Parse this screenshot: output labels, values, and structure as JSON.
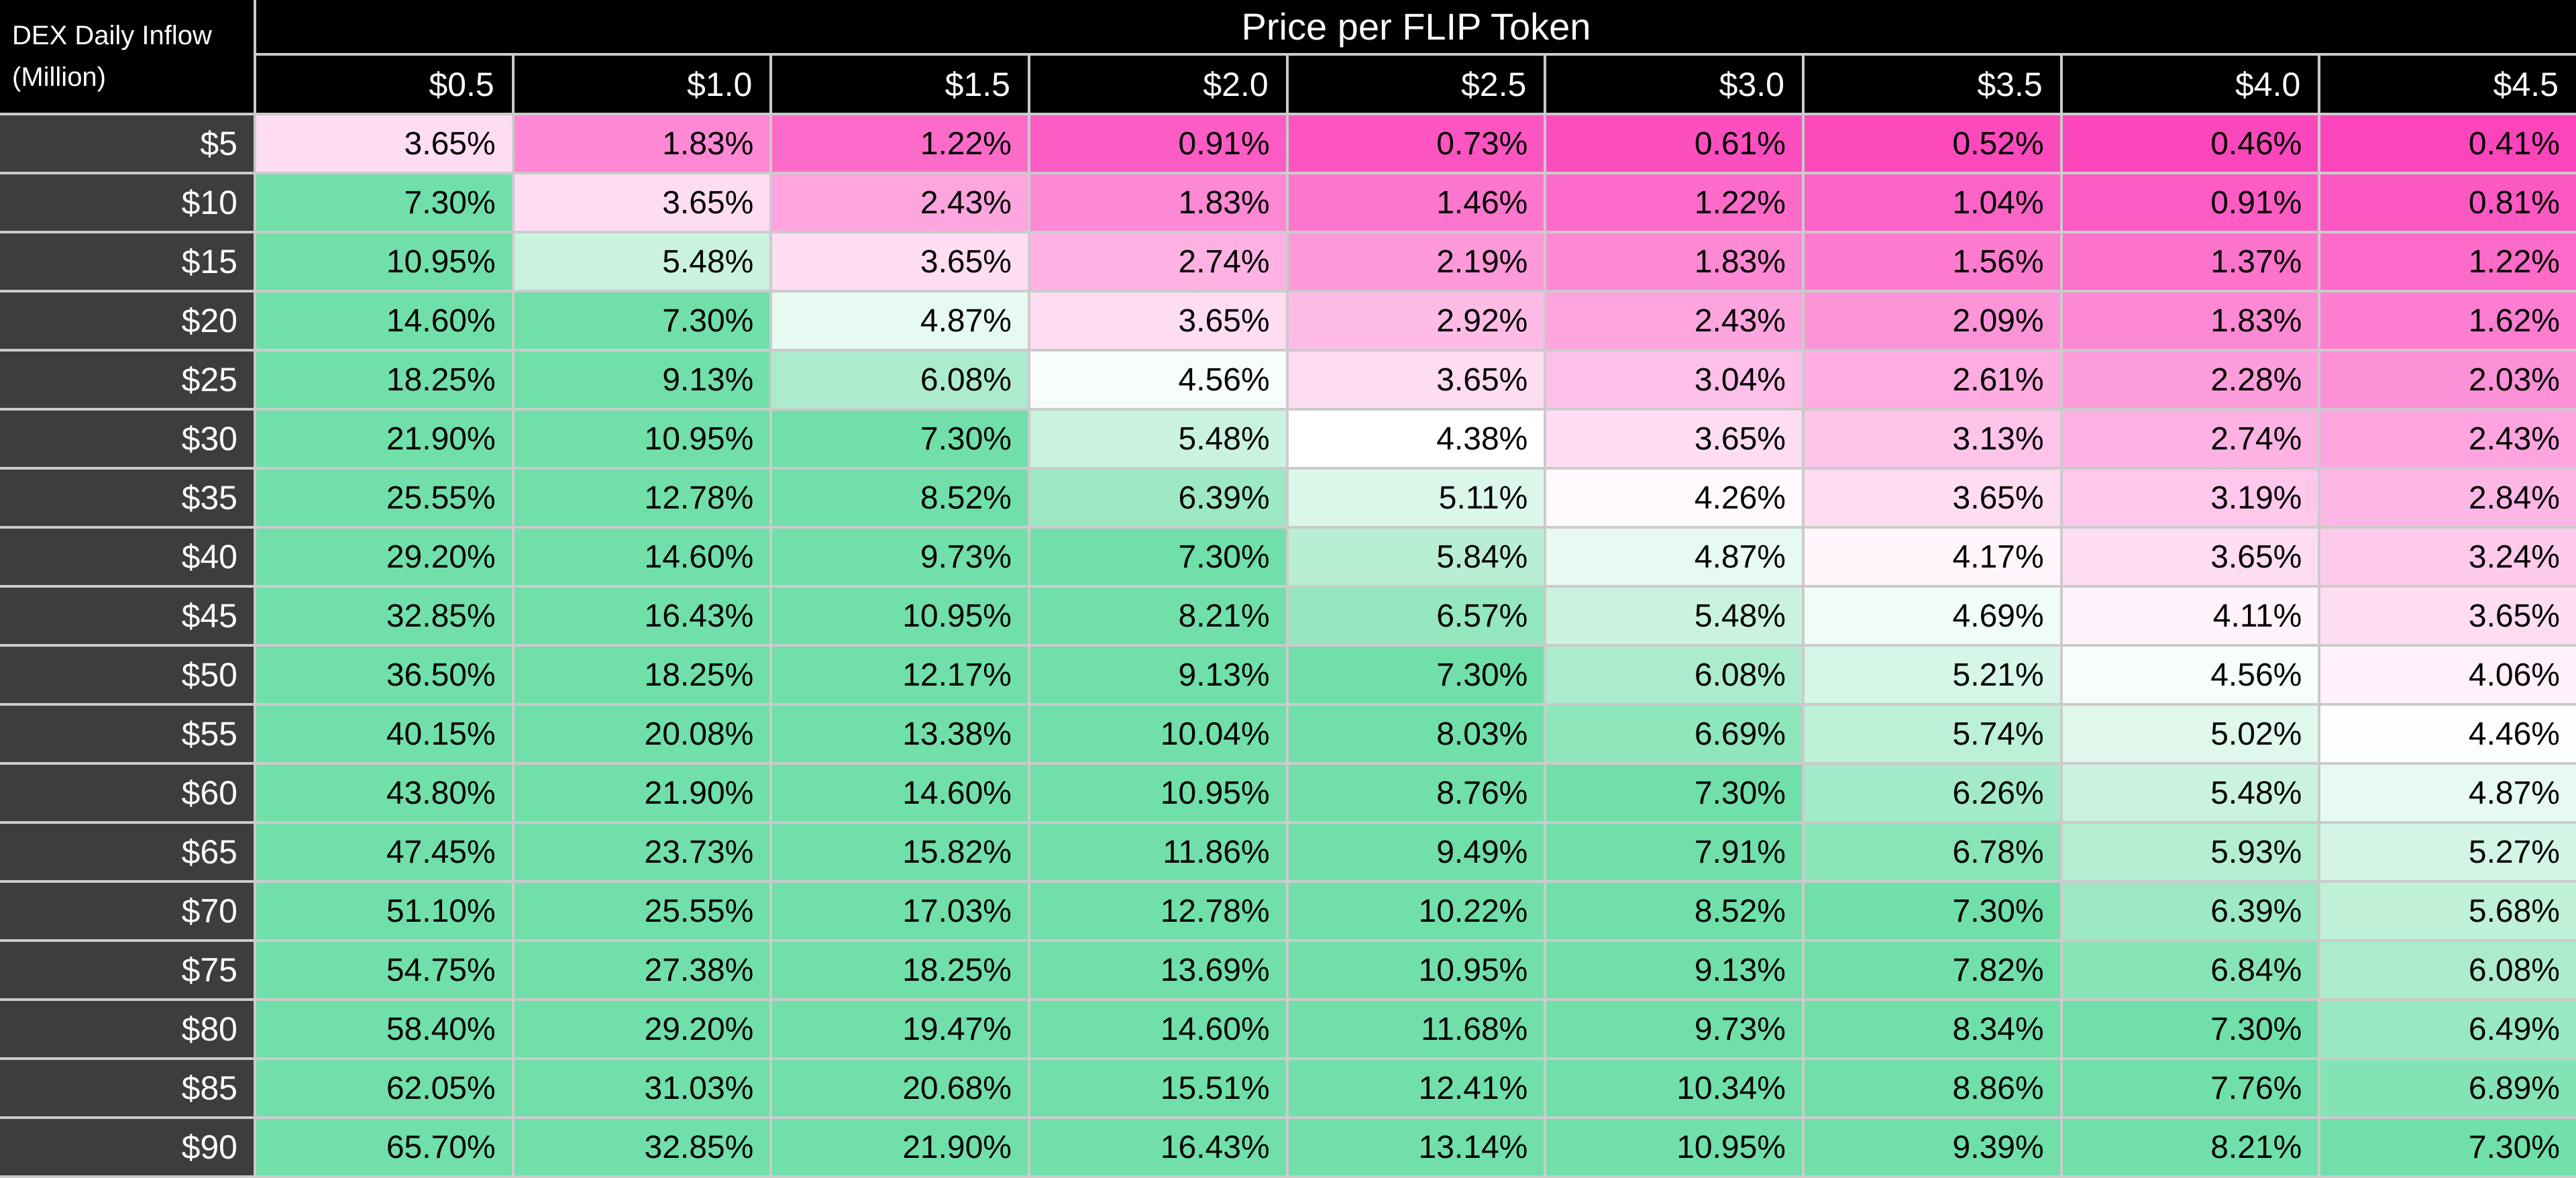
{
  "corner": {
    "line1": "DEX Daily Inflow",
    "line2": "(Million)"
  },
  "title": "Price per FLIP Token",
  "columns": [
    "$0.5",
    "$1.0",
    "$1.5",
    "$2.0",
    "$2.5",
    "$3.0",
    "$3.5",
    "$4.0",
    "$4.5"
  ],
  "rows": [
    {
      "label": "$5",
      "values": [
        "3.65%",
        "1.83%",
        "1.22%",
        "0.91%",
        "0.73%",
        "0.61%",
        "0.52%",
        "0.46%",
        "0.41%"
      ]
    },
    {
      "label": "$10",
      "values": [
        "7.30%",
        "3.65%",
        "2.43%",
        "1.83%",
        "1.46%",
        "1.22%",
        "1.04%",
        "0.91%",
        "0.81%"
      ]
    },
    {
      "label": "$15",
      "values": [
        "10.95%",
        "5.48%",
        "3.65%",
        "2.74%",
        "2.19%",
        "1.83%",
        "1.56%",
        "1.37%",
        "1.22%"
      ]
    },
    {
      "label": "$20",
      "values": [
        "14.60%",
        "7.30%",
        "4.87%",
        "3.65%",
        "2.92%",
        "2.43%",
        "2.09%",
        "1.83%",
        "1.62%"
      ]
    },
    {
      "label": "$25",
      "values": [
        "18.25%",
        "9.13%",
        "6.08%",
        "4.56%",
        "3.65%",
        "3.04%",
        "2.61%",
        "2.28%",
        "2.03%"
      ]
    },
    {
      "label": "$30",
      "values": [
        "21.90%",
        "10.95%",
        "7.30%",
        "5.48%",
        "4.38%",
        "3.65%",
        "3.13%",
        "2.74%",
        "2.43%"
      ]
    },
    {
      "label": "$35",
      "values": [
        "25.55%",
        "12.78%",
        "8.52%",
        "6.39%",
        "5.11%",
        "4.26%",
        "3.65%",
        "3.19%",
        "2.84%"
      ]
    },
    {
      "label": "$40",
      "values": [
        "29.20%",
        "14.60%",
        "9.73%",
        "7.30%",
        "5.84%",
        "4.87%",
        "4.17%",
        "3.65%",
        "3.24%"
      ]
    },
    {
      "label": "$45",
      "values": [
        "32.85%",
        "16.43%",
        "10.95%",
        "8.21%",
        "6.57%",
        "5.48%",
        "4.69%",
        "4.11%",
        "3.65%"
      ]
    },
    {
      "label": "$50",
      "values": [
        "36.50%",
        "18.25%",
        "12.17%",
        "9.13%",
        "7.30%",
        "6.08%",
        "5.21%",
        "4.56%",
        "4.06%"
      ]
    },
    {
      "label": "$55",
      "values": [
        "40.15%",
        "20.08%",
        "13.38%",
        "10.04%",
        "8.03%",
        "6.69%",
        "5.74%",
        "5.02%",
        "4.46%"
      ]
    },
    {
      "label": "$60",
      "values": [
        "43.80%",
        "21.90%",
        "14.60%",
        "10.95%",
        "8.76%",
        "7.30%",
        "6.26%",
        "5.48%",
        "4.87%"
      ]
    },
    {
      "label": "$65",
      "values": [
        "47.45%",
        "23.73%",
        "15.82%",
        "11.86%",
        "9.49%",
        "7.91%",
        "6.78%",
        "5.93%",
        "5.27%"
      ]
    },
    {
      "label": "$70",
      "values": [
        "51.10%",
        "25.55%",
        "17.03%",
        "12.78%",
        "10.22%",
        "8.52%",
        "7.30%",
        "6.39%",
        "5.68%"
      ]
    },
    {
      "label": "$75",
      "values": [
        "54.75%",
        "27.38%",
        "18.25%",
        "13.69%",
        "10.95%",
        "9.13%",
        "7.82%",
        "6.84%",
        "6.08%"
      ]
    },
    {
      "label": "$80",
      "values": [
        "58.40%",
        "29.20%",
        "19.47%",
        "14.60%",
        "11.68%",
        "9.73%",
        "8.34%",
        "7.30%",
        "6.49%"
      ]
    },
    {
      "label": "$85",
      "values": [
        "62.05%",
        "31.03%",
        "20.68%",
        "15.51%",
        "12.41%",
        "10.34%",
        "8.86%",
        "7.76%",
        "6.89%"
      ]
    },
    {
      "label": "$90",
      "values": [
        "65.70%",
        "32.85%",
        "21.90%",
        "16.43%",
        "13.14%",
        "10.95%",
        "9.39%",
        "8.21%",
        "7.30%"
      ]
    }
  ],
  "colors": {
    "scale_low": "#FC45BB",
    "scale_mid": "#FFFFFF",
    "scale_high": "#70DFA9",
    "gridline": "#CBCBCB",
    "header_bg": "#000000",
    "header_text": "#FFFFFF",
    "row_header_bg": "#3D3D3D",
    "cell_text": "#000000"
  },
  "color_scale": {
    "low_value": 0.41,
    "mid_value": 4.38,
    "high_value": 7.3
  },
  "chart_data": {
    "type": "heatmap",
    "title": "Price per FLIP Token",
    "ylabel": "DEX Daily Inflow (Million)",
    "x_categories": [
      "$0.5",
      "$1.0",
      "$1.5",
      "$2.0",
      "$2.5",
      "$3.0",
      "$3.5",
      "$4.0",
      "$4.5"
    ],
    "y_categories": [
      "$5",
      "$10",
      "$15",
      "$20",
      "$25",
      "$30",
      "$35",
      "$40",
      "$45",
      "$50",
      "$55",
      "$60",
      "$65",
      "$70",
      "$75",
      "$80",
      "$85",
      "$90"
    ],
    "values_unit": "percent",
    "values": [
      [
        3.65,
        1.83,
        1.22,
        0.91,
        0.73,
        0.61,
        0.52,
        0.46,
        0.41
      ],
      [
        7.3,
        3.65,
        2.43,
        1.83,
        1.46,
        1.22,
        1.04,
        0.91,
        0.81
      ],
      [
        10.95,
        5.48,
        3.65,
        2.74,
        2.19,
        1.83,
        1.56,
        1.37,
        1.22
      ],
      [
        14.6,
        7.3,
        4.87,
        3.65,
        2.92,
        2.43,
        2.09,
        1.83,
        1.62
      ],
      [
        18.25,
        9.13,
        6.08,
        4.56,
        3.65,
        3.04,
        2.61,
        2.28,
        2.03
      ],
      [
        21.9,
        10.95,
        7.3,
        5.48,
        4.38,
        3.65,
        3.13,
        2.74,
        2.43
      ],
      [
        25.55,
        12.78,
        8.52,
        6.39,
        5.11,
        4.26,
        3.65,
        3.19,
        2.84
      ],
      [
        29.2,
        14.6,
        9.73,
        7.3,
        5.84,
        4.87,
        4.17,
        3.65,
        3.24
      ],
      [
        32.85,
        16.43,
        10.95,
        8.21,
        6.57,
        5.48,
        4.69,
        4.11,
        3.65
      ],
      [
        36.5,
        18.25,
        12.17,
        9.13,
        7.3,
        6.08,
        5.21,
        4.56,
        4.06
      ],
      [
        40.15,
        20.08,
        13.38,
        10.04,
        8.03,
        6.69,
        5.74,
        5.02,
        4.46
      ],
      [
        43.8,
        21.9,
        14.6,
        10.95,
        8.76,
        7.3,
        6.26,
        5.48,
        4.87
      ],
      [
        47.45,
        23.73,
        15.82,
        11.86,
        9.49,
        7.91,
        6.78,
        5.93,
        5.27
      ],
      [
        51.1,
        25.55,
        17.03,
        12.78,
        10.22,
        8.52,
        7.3,
        6.39,
        5.68
      ],
      [
        54.75,
        27.38,
        18.25,
        13.69,
        10.95,
        9.13,
        7.82,
        6.84,
        6.08
      ],
      [
        58.4,
        29.2,
        19.47,
        14.6,
        11.68,
        9.73,
        8.34,
        7.3,
        6.49
      ],
      [
        62.05,
        31.03,
        20.68,
        15.51,
        12.41,
        10.34,
        8.86,
        7.76,
        6.89
      ],
      [
        65.7,
        32.85,
        21.9,
        16.43,
        13.14,
        10.95,
        9.39,
        8.21,
        7.3
      ]
    ],
    "legend": "diverging color scale: magenta (low) -> white (~4.38%) -> green (saturated at >=7.30%)",
    "grid": true
  }
}
